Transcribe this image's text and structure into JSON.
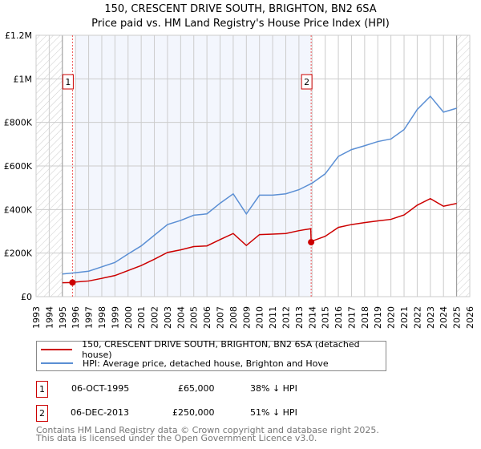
{
  "title_line1": "150, CRESCENT DRIVE SOUTH, BRIGHTON, BN2 6SA",
  "title_line2": "Price paid vs. HM Land Registry's House Price Index (HPI)",
  "chart_data": {
    "type": "line",
    "xlim": [
      1993,
      2026
    ],
    "ylim": [
      0,
      1200000
    ],
    "x_ticks": [
      1993,
      1994,
      1995,
      1996,
      1997,
      1998,
      1999,
      2000,
      2001,
      2002,
      2003,
      2004,
      2005,
      2006,
      2007,
      2008,
      2009,
      2010,
      2011,
      2012,
      2013,
      2014,
      2015,
      2016,
      2017,
      2018,
      2019,
      2020,
      2021,
      2022,
      2023,
      2024,
      2025,
      2026
    ],
    "y_ticks": [
      {
        "v": 0,
        "label": "£0"
      },
      {
        "v": 200000,
        "label": "£200K"
      },
      {
        "v": 400000,
        "label": "£400K"
      },
      {
        "v": 600000,
        "label": "£600K"
      },
      {
        "v": 800000,
        "label": "£800K"
      },
      {
        "v": 1000000,
        "label": "£1M"
      },
      {
        "v": 1200000,
        "label": "£1.2M"
      }
    ],
    "grid": true,
    "hatched_ranges": [
      [
        1993,
        1995.0
      ],
      [
        2025.0,
        2026
      ]
    ],
    "shaded_range": [
      1996.0,
      2013.93
    ],
    "series": [
      {
        "name": "150, CRESCENT DRIVE SOUTH, BRIGHTON, BN2 6SA (detached house)",
        "color": "#cc0000",
        "x": [
          1995.0,
          1995.77,
          1996,
          1997,
          1998,
          1999,
          2000,
          2001,
          2002,
          2003,
          2004,
          2005,
          2006,
          2007,
          2008,
          2009,
          2010,
          2011,
          2012,
          2013,
          2013.9,
          2013.93,
          2014,
          2015,
          2016,
          2017,
          2018,
          2019,
          2020,
          2021,
          2022,
          2023,
          2024,
          2025
        ],
        "y": [
          64000,
          65000,
          67000,
          72000,
          84000,
          97000,
          120000,
          143000,
          172000,
          203000,
          215000,
          230000,
          233000,
          262000,
          290000,
          235000,
          285000,
          287000,
          290000,
          303000,
          312000,
          250000,
          255000,
          277000,
          318000,
          331000,
          340000,
          348000,
          355000,
          375000,
          420000,
          450000,
          415000,
          428000
        ]
      },
      {
        "name": "HPI: Average price, detached house, Brighton and Hove",
        "color": "#5b8fd4",
        "x": [
          1995.0,
          1996,
          1997,
          1998,
          1999,
          2000,
          2001,
          2002,
          2003,
          2004,
          2005,
          2006,
          2007,
          2008,
          2009,
          2010,
          2011,
          2012,
          2013,
          2014,
          2015,
          2016,
          2017,
          2018,
          2019,
          2020,
          2021,
          2022,
          2023,
          2024,
          2025
        ],
        "y": [
          104000,
          110000,
          117000,
          137000,
          157000,
          196000,
          233000,
          282000,
          331000,
          350000,
          374000,
          380000,
          429000,
          472000,
          380000,
          466000,
          466000,
          472000,
          491000,
          521000,
          564000,
          644000,
          675000,
          693000,
          712000,
          724000,
          767000,
          859000,
          920000,
          847000,
          865000
        ]
      }
    ],
    "annotations": [
      {
        "label": "1",
        "x": 1995.77,
        "y": 65000
      },
      {
        "label": "2",
        "x": 2013.93,
        "y": 250000
      }
    ],
    "legend_position": "below"
  },
  "transactions": [
    {
      "num": "1",
      "date": "06-OCT-1995",
      "price": "£65,000",
      "diff": "38% ↓ HPI"
    },
    {
      "num": "2",
      "date": "06-DEC-2013",
      "price": "£250,000",
      "diff": "51% ↓ HPI"
    }
  ],
  "footer1": "Contains HM Land Registry data © Crown copyright and database right 2025.",
  "footer2": "This data is licensed under the Open Government Licence v3.0."
}
